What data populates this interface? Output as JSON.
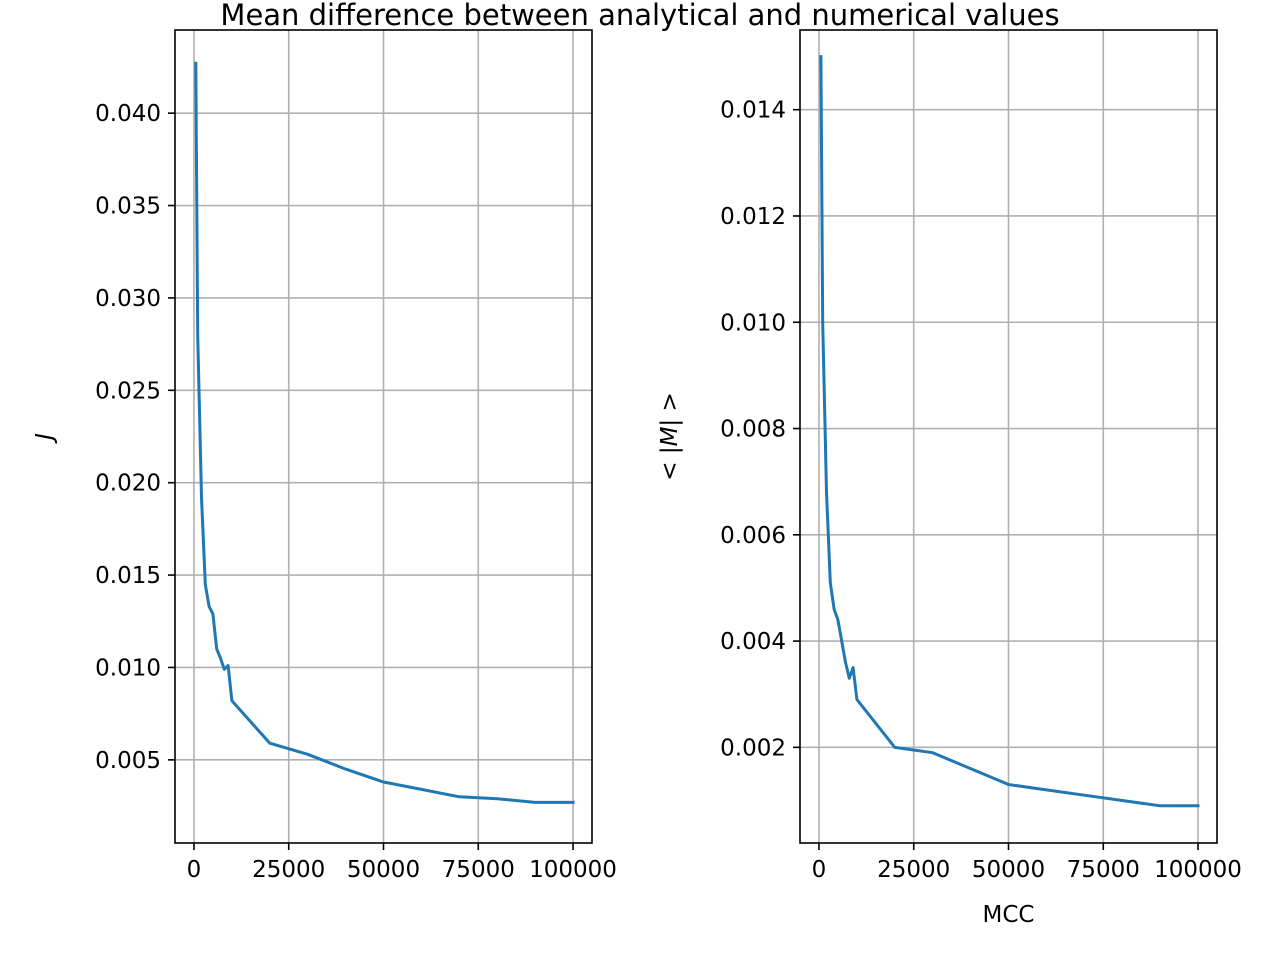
{
  "figure": {
    "suptitle": "Mean difference between analytical and numerical values"
  },
  "chart_data": [
    {
      "type": "line",
      "title": "",
      "xlabel": "",
      "ylabel": "J",
      "xlim": [
        -5000,
        105000
      ],
      "ylim": [
        0.0005,
        0.0445
      ],
      "xticks": [
        0,
        25000,
        50000,
        75000,
        100000
      ],
      "xtick_labels": [
        "0",
        "25000",
        "50000",
        "75000",
        "100000"
      ],
      "yticks": [
        0.005,
        0.01,
        0.015,
        0.02,
        0.025,
        0.03,
        0.035,
        0.04
      ],
      "ytick_labels": [
        "0.005",
        "0.010",
        "0.015",
        "0.020",
        "0.025",
        "0.030",
        "0.035",
        "0.040"
      ],
      "grid": true,
      "color": "#1f77b4",
      "series": [
        {
          "x": [
            500,
            1000,
            2000,
            3000,
            4000,
            5000,
            6000,
            7000,
            8000,
            9000,
            10000,
            20000,
            30000,
            40000,
            50000,
            60000,
            70000,
            80000,
            90000,
            100000
          ],
          "y": [
            0.0427,
            0.028,
            0.0192,
            0.0145,
            0.0133,
            0.0129,
            0.011,
            0.0105,
            0.0099,
            0.0101,
            0.0082,
            0.0059,
            0.0053,
            0.0045,
            0.0038,
            0.0034,
            0.003,
            0.0029,
            0.0027,
            0.0027
          ]
        }
      ]
    },
    {
      "type": "line",
      "title": "",
      "xlabel": "MCC",
      "ylabel": "< |M| >",
      "xlim": [
        -5000,
        105000
      ],
      "ylim": [
        0.0002,
        0.0155
      ],
      "xticks": [
        0,
        25000,
        50000,
        75000,
        100000
      ],
      "xtick_labels": [
        "0",
        "25000",
        "50000",
        "75000",
        "100000"
      ],
      "yticks": [
        0.002,
        0.004,
        0.006,
        0.008,
        0.01,
        0.012,
        0.014
      ],
      "ytick_labels": [
        "0.002",
        "0.004",
        "0.006",
        "0.008",
        "0.010",
        "0.012",
        "0.014"
      ],
      "grid": true,
      "color": "#1f77b4",
      "series": [
        {
          "x": [
            500,
            1000,
            2000,
            3000,
            4000,
            5000,
            6000,
            7000,
            8000,
            9000,
            10000,
            20000,
            30000,
            40000,
            50000,
            60000,
            70000,
            80000,
            90000,
            100000
          ],
          "y": [
            0.015,
            0.01,
            0.0068,
            0.0051,
            0.0046,
            0.0044,
            0.004,
            0.0036,
            0.0033,
            0.0035,
            0.0029,
            0.002,
            0.0019,
            0.0016,
            0.0013,
            0.0012,
            0.0011,
            0.001,
            0.0009,
            0.0009
          ]
        }
      ]
    }
  ]
}
